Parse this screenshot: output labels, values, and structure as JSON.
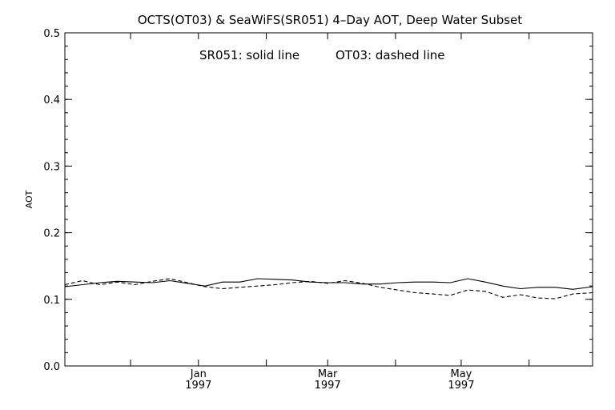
{
  "chart_data": {
    "type": "line",
    "title": "OCTS(OT03) & SeaWiFS(SR051) 4–Day AOT, Deep Water Subset",
    "annotation_left": "SR051: solid line",
    "annotation_right": "OT03: dashed line",
    "ylabel": "AOT",
    "xlabel": "",
    "ylim": [
      0.0,
      0.5
    ],
    "y_ticks": [
      0.0,
      0.1,
      0.2,
      0.3,
      0.4,
      0.5
    ],
    "y_tick_labels": [
      "0.0",
      "0.1",
      "0.2",
      "0.3",
      "0.4",
      "0.5"
    ],
    "xlim": [
      "1996-11-01",
      "1997-06-30"
    ],
    "x_ticks": [
      {
        "date": "1997-01-01",
        "month": "Jan",
        "year": "1997"
      },
      {
        "date": "1997-03-01",
        "month": "Mar",
        "year": "1997"
      },
      {
        "date": "1997-05-01",
        "month": "May",
        "year": "1997"
      }
    ],
    "grid": false,
    "legend": "none",
    "series": [
      {
        "name": "SR051",
        "style": "solid",
        "color": "#000000",
        "x": [
          "1996-11-01",
          "1996-11-09",
          "1996-11-17",
          "1996-11-25",
          "1996-12-03",
          "1996-12-11",
          "1996-12-19",
          "1996-12-27",
          "1997-01-04",
          "1997-01-12",
          "1997-01-20",
          "1997-01-28",
          "1997-02-05",
          "1997-02-13",
          "1997-02-21",
          "1997-03-01",
          "1997-03-09",
          "1997-03-17",
          "1997-03-25",
          "1997-04-02",
          "1997-04-10",
          "1997-04-18",
          "1997-04-26",
          "1997-05-04",
          "1997-05-12",
          "1997-05-20",
          "1997-05-28",
          "1997-06-05",
          "1997-06-13",
          "1997-06-21",
          "1997-06-30"
        ],
        "y": [
          0.119,
          0.122,
          0.125,
          0.127,
          0.126,
          0.125,
          0.128,
          0.124,
          0.12,
          0.126,
          0.126,
          0.131,
          0.13,
          0.129,
          0.126,
          0.125,
          0.125,
          0.123,
          0.123,
          0.125,
          0.126,
          0.126,
          0.125,
          0.131,
          0.126,
          0.12,
          0.116,
          0.118,
          0.118,
          0.115,
          0.119
        ]
      },
      {
        "name": "OT03",
        "style": "dashed",
        "color": "#000000",
        "x": [
          "1996-11-01",
          "1996-11-09",
          "1996-11-17",
          "1996-11-25",
          "1996-12-03",
          "1996-12-11",
          "1996-12-19",
          "1996-12-27",
          "1997-01-04",
          "1997-01-12",
          "1997-01-20",
          "1997-01-28",
          "1997-02-05",
          "1997-02-13",
          "1997-02-21",
          "1997-03-01",
          "1997-03-09",
          "1997-03-17",
          "1997-03-25",
          "1997-04-02",
          "1997-04-10",
          "1997-04-18",
          "1997-04-26",
          "1997-05-04",
          "1997-05-12",
          "1997-05-20",
          "1997-05-28",
          "1997-06-05",
          "1997-06-13",
          "1997-06-21",
          "1997-06-30"
        ],
        "y": [
          0.122,
          0.128,
          0.122,
          0.126,
          0.122,
          0.127,
          0.131,
          0.125,
          0.119,
          0.116,
          0.118,
          0.12,
          0.122,
          0.125,
          0.127,
          0.124,
          0.128,
          0.124,
          0.118,
          0.114,
          0.11,
          0.108,
          0.106,
          0.114,
          0.112,
          0.103,
          0.107,
          0.102,
          0.101,
          0.108,
          0.11
        ]
      }
    ]
  }
}
